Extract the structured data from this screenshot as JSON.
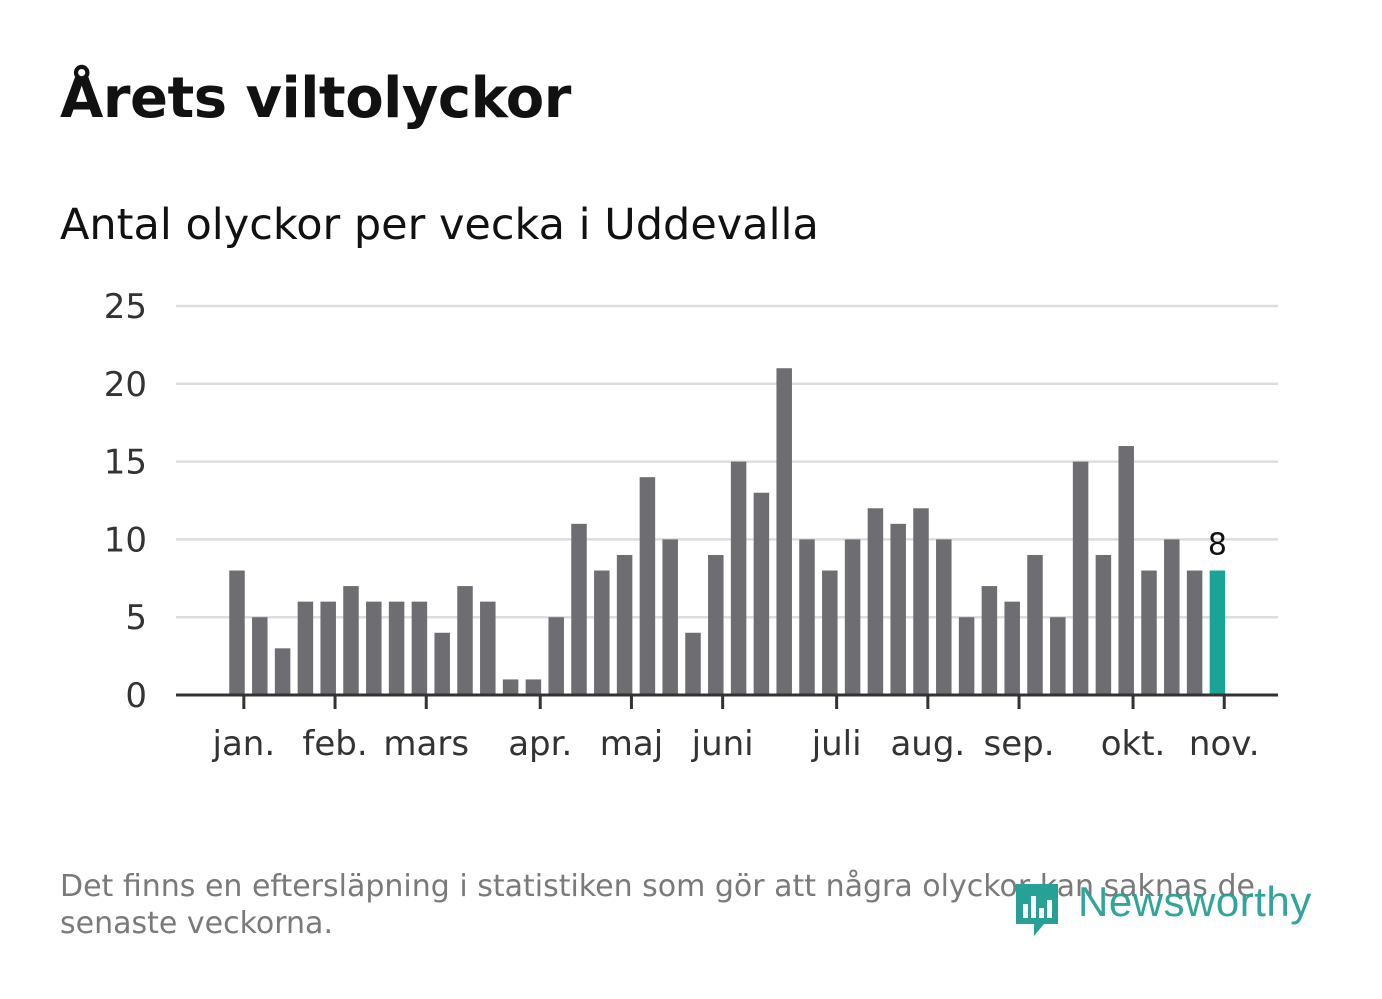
{
  "title": "Årets viltolyckor",
  "subtitle": "Antal olyckor per vecka i Uddevalla",
  "footnote": "Det finns en eftersläpning i statistiken som gör att några olyckor kan saknas de senaste veckorna.",
  "logo_text": "Newsworthy",
  "colors": {
    "bar": "#6e6d72",
    "highlight": "#1aa397",
    "grid": "#dddddd",
    "axis": "#333333"
  },
  "chart_data": {
    "type": "bar",
    "title": "Antal olyckor per vecka i Uddevalla",
    "xlabel": "",
    "ylabel": "",
    "ylim": [
      0,
      25
    ],
    "yticks": [
      0,
      5,
      10,
      15,
      20,
      25
    ],
    "values": [
      8,
      5,
      3,
      6,
      6,
      7,
      6,
      6,
      6,
      4,
      7,
      6,
      1,
      1,
      5,
      11,
      8,
      9,
      14,
      10,
      4,
      9,
      15,
      13,
      21,
      10,
      8,
      10,
      12,
      11,
      12,
      10,
      5,
      7,
      6,
      9,
      5,
      15,
      9,
      16,
      8,
      10,
      8,
      8
    ],
    "month_ticks": [
      {
        "label": "jan.",
        "week_index": 0.3
      },
      {
        "label": "feb.",
        "week_index": 4.3
      },
      {
        "label": "mars",
        "week_index": 8.3
      },
      {
        "label": "apr.",
        "week_index": 13.3
      },
      {
        "label": "maj",
        "week_index": 17.3
      },
      {
        "label": "juni",
        "week_index": 21.3
      },
      {
        "label": "juli",
        "week_index": 26.3
      },
      {
        "label": "aug.",
        "week_index": 30.3
      },
      {
        "label": "sep.",
        "week_index": 34.3
      },
      {
        "label": "okt.",
        "week_index": 39.3
      },
      {
        "label": "nov.",
        "week_index": 43.3
      }
    ],
    "highlight_index": 43,
    "highlight_label": "8",
    "grid": true
  }
}
